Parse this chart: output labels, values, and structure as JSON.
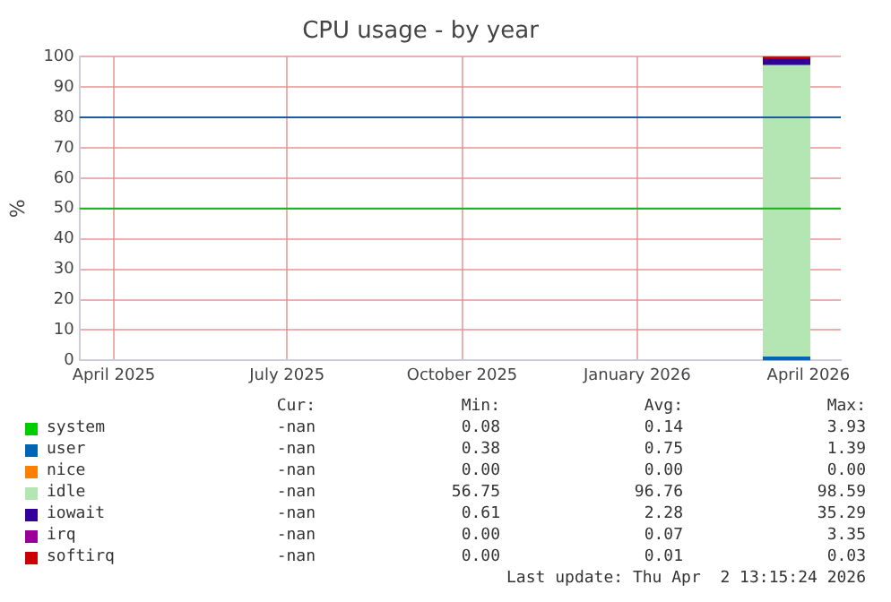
{
  "chart_data": {
    "type": "area",
    "title": "CPU usage - by year",
    "ylabel": "%",
    "stacked": true,
    "x": [
      "2026-03-08",
      "2026-04-02"
    ],
    "series": [
      {
        "name": "system",
        "color": "#00cc00",
        "values": [
          null,
          null
        ]
      },
      {
        "name": "user",
        "color": "#0066b3",
        "values": [
          1,
          1
        ]
      },
      {
        "name": "nice",
        "color": "#ff8000",
        "values": [
          null,
          null
        ]
      },
      {
        "name": "idle",
        "color": "#b3e6b3",
        "values": [
          96,
          96
        ]
      },
      {
        "name": "iowait",
        "color": "#330099",
        "values": [
          2,
          2
        ]
      },
      {
        "name": "irq",
        "color": "#990099",
        "values": [
          null,
          null
        ]
      },
      {
        "name": "softirq",
        "color": "#cc0000",
        "values": [
          1,
          1
        ]
      }
    ],
    "xlim": [
      "2025-03-14",
      "2026-04-18"
    ],
    "xticks": [
      {
        "value": "2025-04-01",
        "label": "April 2025"
      },
      {
        "value": "2025-07-01",
        "label": "July 2025"
      },
      {
        "value": "2025-10-01",
        "label": "October 2025"
      },
      {
        "value": "2026-01-01",
        "label": "January 2026"
      },
      {
        "value": "2026-04-01",
        "label": "April 2026"
      }
    ],
    "ylim": [
      0,
      100
    ],
    "yticks": [
      0,
      10,
      20,
      30,
      40,
      50,
      60,
      70,
      80,
      90,
      100
    ],
    "ref_lines": [
      {
        "axis": "y",
        "value": 80,
        "color": "#1f5b99"
      },
      {
        "axis": "y",
        "value": 50,
        "color": "#22aa22"
      }
    ],
    "grid": true,
    "legend": "bottom",
    "annotations": [
      "Cur:",
      "Min:",
      "Avg:",
      "Max:",
      "-nan",
      "0.08",
      "0.14",
      "3.93",
      "-nan",
      "0.38",
      "0.75",
      "1.39",
      "-nan",
      "0.00",
      "0.00",
      "0.00",
      "-nan",
      "56.75",
      "96.76",
      "98.59",
      "-nan",
      "0.61",
      "2.28",
      "35.29",
      "-nan",
      "0.00",
      "0.07",
      "3.35",
      "-nan",
      "0.00",
      "0.01",
      "0.03",
      "Last update: Thu Apr  2 13:15:24 2026"
    ]
  }
}
